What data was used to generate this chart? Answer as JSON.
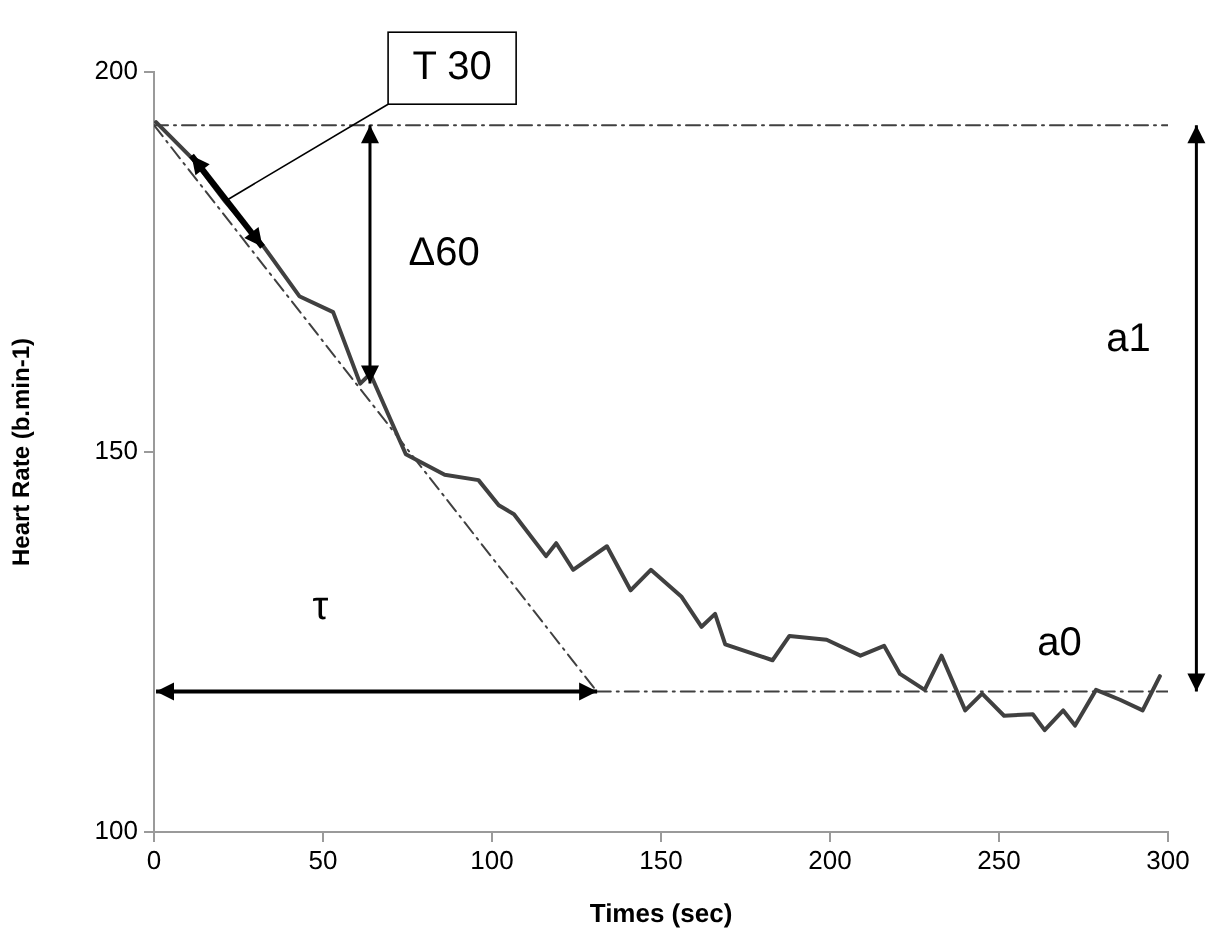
{
  "chart_data": {
    "type": "line",
    "xlabel": "Times (sec)",
    "ylabel": "Heart Rate (b.min-1)",
    "xlim": [
      0,
      300
    ],
    "xticks": [
      0,
      50,
      100,
      150,
      200,
      250,
      300
    ],
    "ylim": [
      100,
      200
    ],
    "yticks": [
      100,
      150,
      200
    ],
    "grid": false,
    "legend": false,
    "marker": "none",
    "line_style": "solid",
    "series": [
      {
        "color": "#404040",
        "x": [
          0.6,
          11.8,
          21,
          32.5,
          43,
          53,
          61,
          64,
          74.5,
          86,
          96,
          102,
          106.5,
          116,
          119,
          124,
          134,
          141,
          147,
          156,
          162,
          166,
          169,
          183,
          188,
          199,
          209,
          216,
          220.7,
          228,
          233,
          240,
          245,
          251.5,
          260,
          263.5,
          269,
          272.5,
          278.7,
          285.8,
          292.5,
          297.6
        ],
        "values": [
          193.4,
          188.4,
          183,
          177,
          170.5,
          168.4,
          159,
          160.3,
          149.7,
          147,
          146.3,
          143,
          141.8,
          136.3,
          138,
          134.5,
          137.6,
          131.8,
          134.5,
          131,
          127,
          128.7,
          124.7,
          122.6,
          125.8,
          125.3,
          123.2,
          124.5,
          120.8,
          118.7,
          123.2,
          116,
          118.2,
          115.3,
          115.5,
          113.4,
          116,
          114,
          118.7,
          117.4,
          116,
          120.5
        ]
      },
      {
        "type": "line",
        "color": "#404040",
        "line_style": "dashed",
        "x": [
          0,
          300
        ],
        "values": [
          193,
          193
        ]
      },
      {
        "type": "line",
        "color": "#404040",
        "line_style": "dashed",
        "x": [
          131,
          300
        ],
        "values": [
          118.5,
          118.5
        ]
      },
      {
        "type": "line",
        "color": "#404040",
        "line_style": "dashed",
        "x": [
          0,
          131
        ],
        "values": [
          193,
          118.5
        ]
      }
    ],
    "annotations": [
      {
        "text": "T 30",
        "x": 21,
        "y": 183
      },
      "Δ60",
      "a1",
      "a0",
      "τ"
    ]
  }
}
